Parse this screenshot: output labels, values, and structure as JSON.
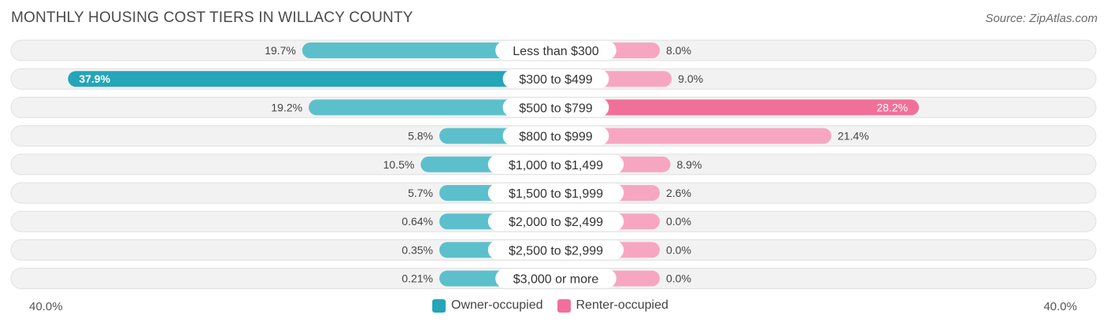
{
  "title": "MONTHLY HOUSING COST TIERS IN WILLACY COUNTY",
  "source": "Source: ZipAtlas.com",
  "colors": {
    "owner": "#5bc0cc",
    "owner_strong": "#24a5b8",
    "renter": "#f7a6c2",
    "renter_strong": "#f0709a",
    "track": "#f1f1f1",
    "track_border": "#dedede"
  },
  "chart_data": {
    "type": "bar",
    "orientation": "horizontal-diverging",
    "title": "MONTHLY HOUSING COST TIERS IN WILLACY COUNTY",
    "categories": [
      "Less than $300",
      "$300 to $499",
      "$500 to $799",
      "$800 to $999",
      "$1,000 to $1,499",
      "$1,500 to $1,999",
      "$2,000 to $2,499",
      "$2,500 to $2,999",
      "$3,000 or more"
    ],
    "series": [
      {
        "name": "Owner-occupied",
        "values": [
          19.7,
          37.9,
          19.2,
          5.8,
          10.5,
          5.7,
          0.64,
          0.35,
          0.21
        ],
        "labels": [
          "19.7%",
          "37.9%",
          "19.2%",
          "5.8%",
          "10.5%",
          "5.7%",
          "0.64%",
          "0.35%",
          "0.21%"
        ]
      },
      {
        "name": "Renter-occupied",
        "values": [
          8.0,
          9.0,
          28.2,
          21.4,
          8.9,
          2.6,
          0.0,
          0.0,
          0.0
        ],
        "labels": [
          "8.0%",
          "9.0%",
          "28.2%",
          "21.4%",
          "8.9%",
          "2.6%",
          "0.0%",
          "0.0%",
          "0.0%"
        ]
      }
    ],
    "xlim": [
      -40,
      40
    ],
    "axis_labels": {
      "left": "40.0%",
      "right": "40.0%"
    },
    "legend": [
      "Owner-occupied",
      "Renter-occupied"
    ],
    "legend_position": "bottom-center"
  }
}
